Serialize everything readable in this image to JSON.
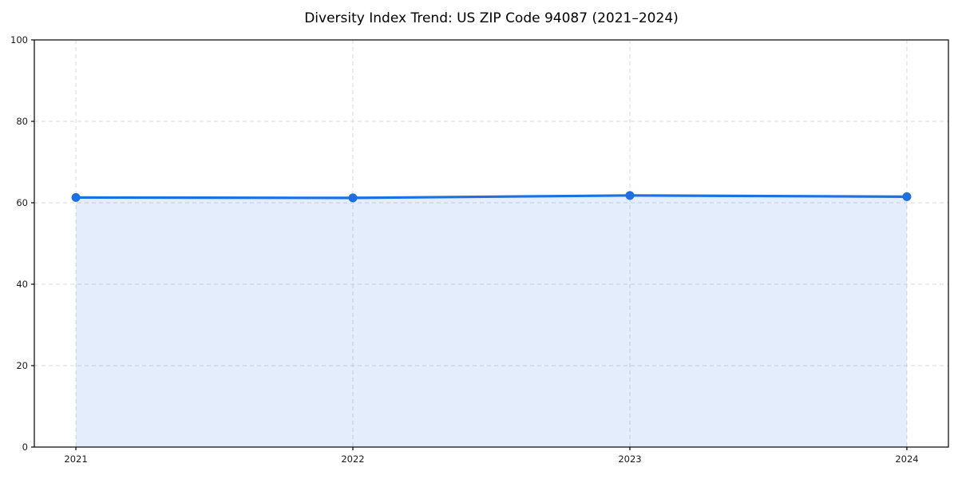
{
  "chart_data": {
    "type": "area",
    "title": "Diversity Index Trend: US ZIP Code 94087 (2021–2024)",
    "x": [
      2021,
      2022,
      2023,
      2024
    ],
    "xtick_labels": [
      "2021",
      "2022",
      "2023",
      "2024"
    ],
    "series": [
      {
        "name": "Diversity Index",
        "values": [
          61.3,
          61.2,
          61.8,
          61.5
        ]
      }
    ],
    "xlabel": "",
    "ylabel": "",
    "ylim": [
      0,
      100
    ],
    "yticks": [
      0,
      20,
      40,
      60,
      80,
      100
    ],
    "x_margin": 0.05,
    "grid": true,
    "grid_style": "dashed",
    "grid_color": "#d9d9d9",
    "line_color": "#1f6fe0",
    "marker": "circle",
    "fill_opacity": 0.12,
    "axis_color": "#000000",
    "text_color": "#1a1a1a",
    "legend": "none"
  }
}
